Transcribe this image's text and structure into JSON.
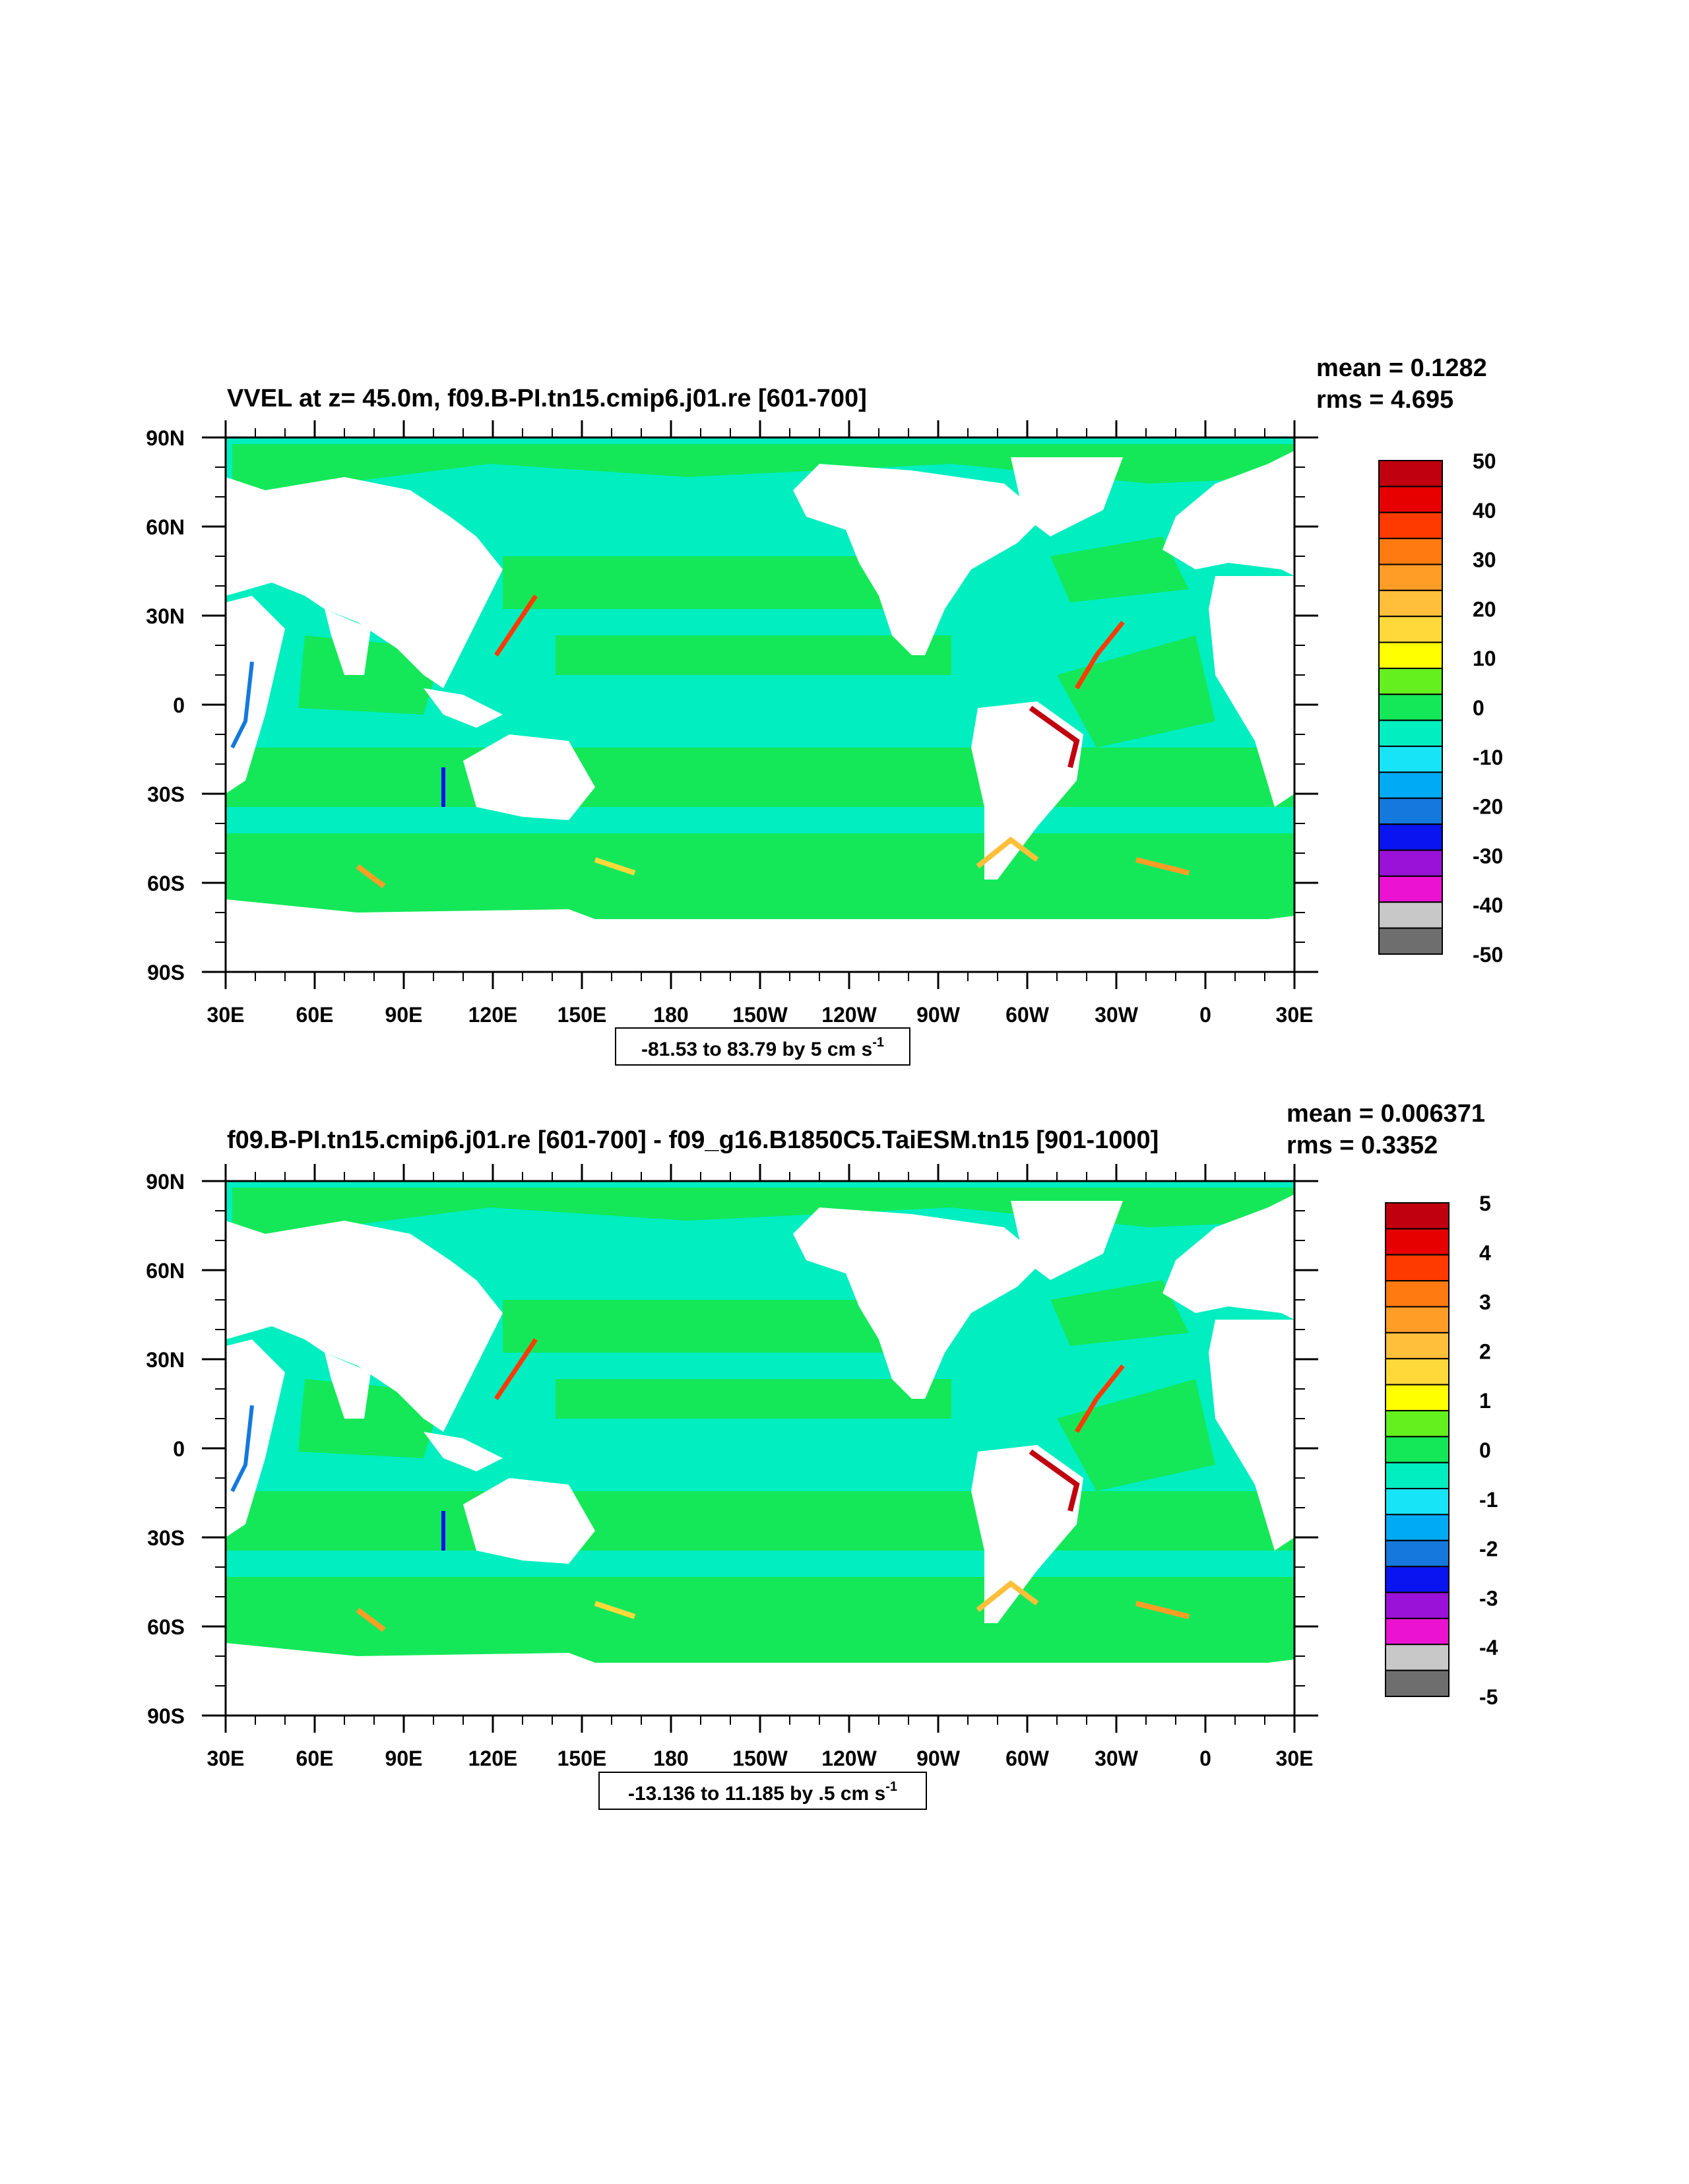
{
  "panels": [
    {
      "title": "VVEL at z=  45.0m, f09.B-PI.tn15.cmip6.j01.re [601-700]",
      "stats": {
        "mean": "mean = 0.1282",
        "rms": "rms = 4.695"
      },
      "x_ticks": [
        "30E",
        "60E",
        "90E",
        "120E",
        "150E",
        "180",
        "150W",
        "120W",
        "90W",
        "60W",
        "30W",
        "0",
        "30E"
      ],
      "y_ticks": [
        "90N",
        "60N",
        "30N",
        "0",
        "30S",
        "60S",
        "90S"
      ],
      "contour_info": {
        "text": "-81.53 to 83.79 by 5 cm s",
        "sup": "-1"
      },
      "colorbar": {
        "labels": [
          "50",
          "40",
          "30",
          "20",
          "10",
          "0",
          "-10",
          "-20",
          "-30",
          "-40",
          "-50"
        ],
        "colors": [
          "#c0000f",
          "#e60000",
          "#ff3a00",
          "#ff7a10",
          "#ff9d26",
          "#ffbf3a",
          "#ffd93a",
          "#ffff00",
          "#63f01e",
          "#14e859",
          "#00eec0",
          "#18e4f7",
          "#00aaf4",
          "#1478dd",
          "#0a14f0",
          "#9a12d7",
          "#eb12d2",
          "#c8c8c8",
          "#6e6e6e"
        ]
      }
    },
    {
      "title": "f09.B-PI.tn15.cmip6.j01.re [601-700] - f09_g16.B1850C5.TaiESM.tn15 [901-1000]",
      "stats": {
        "mean": "mean = 0.006371",
        "rms": "rms = 0.3352"
      },
      "x_ticks": [
        "30E",
        "60E",
        "90E",
        "120E",
        "150E",
        "180",
        "150W",
        "120W",
        "90W",
        "60W",
        "30W",
        "0",
        "30E"
      ],
      "y_ticks": [
        "90N",
        "60N",
        "30N",
        "0",
        "30S",
        "60S",
        "90S"
      ],
      "contour_info": {
        "text": "-13.136 to 11.185 by .5 cm s",
        "sup": "-1"
      },
      "colorbar": {
        "labels": [
          "5",
          "4",
          "3",
          "2",
          "1",
          "0",
          "-1",
          "-2",
          "-3",
          "-4",
          "-5"
        ],
        "colors": [
          "#c0000f",
          "#e60000",
          "#ff3a00",
          "#ff7a10",
          "#ff9d26",
          "#ffbf3a",
          "#ffd93a",
          "#ffff00",
          "#63f01e",
          "#14e859",
          "#00eec0",
          "#18e4f7",
          "#00aaf4",
          "#1478dd",
          "#0a14f0",
          "#9a12d7",
          "#eb12d2",
          "#c8c8c8",
          "#6e6e6e"
        ]
      }
    }
  ],
  "map_colors": {
    "land": "#ffffff",
    "ocean_positive": "#14e859",
    "ocean_negative": "#00eec0",
    "near_zero": "#18e4f7"
  }
}
